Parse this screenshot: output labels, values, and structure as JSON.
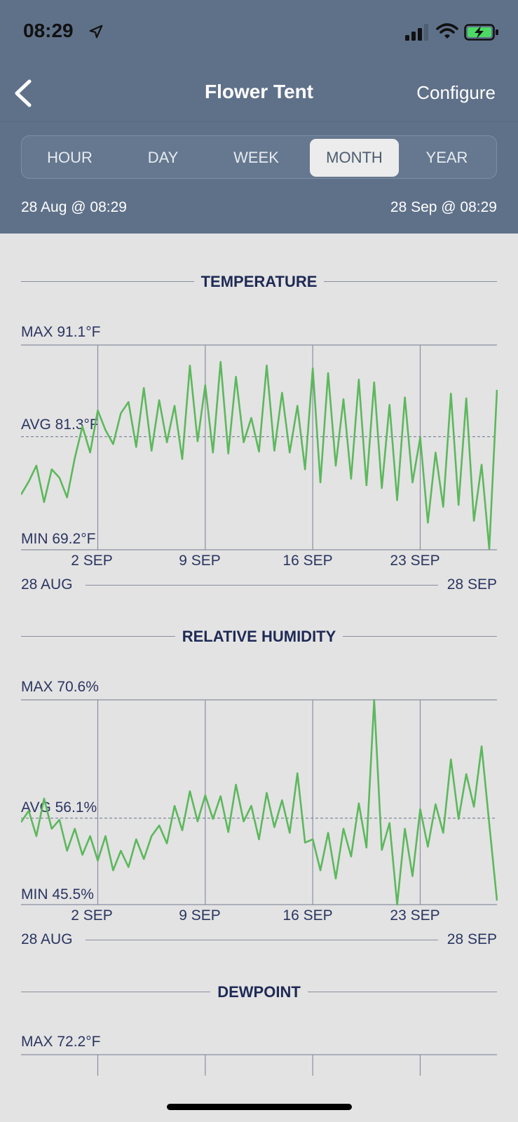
{
  "status_bar": {
    "time": "08:29",
    "icons": [
      "location-arrow-icon",
      "cellular-signal-icon",
      "wifi-icon",
      "battery-charging-icon"
    ]
  },
  "nav": {
    "back_icon": "chevron-left-icon",
    "title": "Flower Tent",
    "configure_label": "Configure"
  },
  "tabs": [
    {
      "label": "HOUR",
      "active": false
    },
    {
      "label": "DAY",
      "active": false
    },
    {
      "label": "WEEK",
      "active": false
    },
    {
      "label": "MONTH",
      "active": true
    },
    {
      "label": "YEAR",
      "active": false
    }
  ],
  "range": {
    "start": "28 Aug @ 08:29",
    "end": "28 Sep @ 08:29"
  },
  "colors": {
    "header": "#5f7189",
    "line": "#5cb85c",
    "title": "#1f2a55",
    "background": "#e3e3e3"
  },
  "chart_data": [
    {
      "type": "line",
      "title": "TEMPERATURE",
      "max_label": "MAX 91.1°F",
      "avg_label": "AVG 81.3°F",
      "min_label": "MIN 69.2°F",
      "ylim": [
        69.2,
        91.1
      ],
      "avg": 81.3,
      "xlim": [
        0,
        31
      ],
      "ticks": [
        {
          "x": 5,
          "label": "2 SEP"
        },
        {
          "x": 12,
          "label": "9 SEP"
        },
        {
          "x": 19,
          "label": "16 SEP"
        },
        {
          "x": 26,
          "label": "23 SEP"
        }
      ],
      "range_start_label": "28 AUG",
      "range_end_label": "28 SEP",
      "series": [
        {
          "values": [
            [
              0,
              75.1
            ],
            [
              0.5,
              76.5
            ],
            [
              1,
              78.2
            ],
            [
              1.5,
              74.3
            ],
            [
              2,
              77.8
            ],
            [
              2.5,
              76.9
            ],
            [
              3,
              74.8
            ],
            [
              3.5,
              79.0
            ],
            [
              4,
              82.4
            ],
            [
              4.5,
              79.6
            ],
            [
              5,
              84.1
            ],
            [
              5.5,
              82.0
            ],
            [
              6,
              80.5
            ],
            [
              6.5,
              83.8
            ],
            [
              7,
              85.0
            ],
            [
              7.5,
              80.2
            ],
            [
              8,
              86.5
            ],
            [
              8.5,
              79.8
            ],
            [
              9,
              85.2
            ],
            [
              9.5,
              80.7
            ],
            [
              10,
              84.6
            ],
            [
              10.5,
              78.9
            ],
            [
              11,
              88.9
            ],
            [
              11.5,
              80.8
            ],
            [
              12,
              86.8
            ],
            [
              12.5,
              79.6
            ],
            [
              13,
              89.3
            ],
            [
              13.5,
              79.5
            ],
            [
              14,
              87.7
            ],
            [
              14.5,
              80.7
            ],
            [
              15,
              83.3
            ],
            [
              15.5,
              79.7
            ],
            [
              16,
              88.9
            ],
            [
              16.5,
              79.8
            ],
            [
              17,
              86.0
            ],
            [
              17.5,
              79.6
            ],
            [
              18,
              84.6
            ],
            [
              18.5,
              77.8
            ],
            [
              19,
              88.6
            ],
            [
              19.5,
              76.4
            ],
            [
              20,
              88.1
            ],
            [
              20.5,
              78.2
            ],
            [
              21,
              85.3
            ],
            [
              21.5,
              76.8
            ],
            [
              22,
              87.4
            ],
            [
              22.5,
              76.1
            ],
            [
              23,
              87.1
            ],
            [
              23.5,
              75.8
            ],
            [
              24,
              84.7
            ],
            [
              24.5,
              74.5
            ],
            [
              25,
              85.5
            ],
            [
              25.5,
              76.4
            ],
            [
              26,
              81.2
            ],
            [
              26.5,
              72.1
            ],
            [
              27,
              79.6
            ],
            [
              27.5,
              73.8
            ],
            [
              28,
              85.9
            ],
            [
              28.5,
              74.0
            ],
            [
              29,
              85.4
            ],
            [
              29.5,
              72.3
            ],
            [
              30,
              78.3
            ],
            [
              30.5,
              69.3
            ],
            [
              31,
              86.3
            ]
          ]
        }
      ]
    },
    {
      "type": "line",
      "title": "RELATIVE HUMIDITY",
      "max_label": "MAX 70.6%",
      "avg_label": "AVG 56.1%",
      "min_label": "MIN 45.5%",
      "ylim": [
        45.5,
        70.6
      ],
      "avg": 56.1,
      "xlim": [
        0,
        31
      ],
      "ticks": [
        {
          "x": 5,
          "label": "2 SEP"
        },
        {
          "x": 12,
          "label": "9 SEP"
        },
        {
          "x": 19,
          "label": "16 SEP"
        },
        {
          "x": 26,
          "label": "23 SEP"
        }
      ],
      "range_start_label": "28 AUG",
      "range_end_label": "28 SEP",
      "series": [
        {
          "values": [
            [
              0,
              55.6
            ],
            [
              0.5,
              57.0
            ],
            [
              1,
              53.9
            ],
            [
              1.5,
              58.5
            ],
            [
              2,
              54.8
            ],
            [
              2.5,
              55.9
            ],
            [
              3,
              52.1
            ],
            [
              3.5,
              54.8
            ],
            [
              4,
              51.6
            ],
            [
              4.5,
              53.9
            ],
            [
              5,
              50.9
            ],
            [
              5.5,
              53.9
            ],
            [
              6,
              49.7
            ],
            [
              6.5,
              52.1
            ],
            [
              7,
              50.1
            ],
            [
              7.5,
              53.5
            ],
            [
              8,
              51.1
            ],
            [
              8.5,
              53.9
            ],
            [
              9,
              55.2
            ],
            [
              9.5,
              53.0
            ],
            [
              10,
              57.6
            ],
            [
              10.5,
              54.6
            ],
            [
              11,
              59.4
            ],
            [
              11.5,
              55.7
            ],
            [
              12,
              58.9
            ],
            [
              12.5,
              56.0
            ],
            [
              13,
              58.8
            ],
            [
              13.5,
              54.4
            ],
            [
              14,
              60.2
            ],
            [
              14.5,
              55.7
            ],
            [
              15,
              57.6
            ],
            [
              15.5,
              53.5
            ],
            [
              16,
              59.2
            ],
            [
              16.5,
              55.0
            ],
            [
              17,
              58.3
            ],
            [
              17.5,
              54.3
            ],
            [
              18,
              61.6
            ],
            [
              18.5,
              53.1
            ],
            [
              19,
              53.5
            ],
            [
              19.5,
              49.7
            ],
            [
              20,
              54.3
            ],
            [
              20.5,
              48.7
            ],
            [
              21,
              54.8
            ],
            [
              21.5,
              51.4
            ],
            [
              22,
              57.9
            ],
            [
              22.5,
              52.5
            ],
            [
              23,
              70.6
            ],
            [
              23.5,
              52.2
            ],
            [
              24,
              55.5
            ],
            [
              24.5,
              45.5
            ],
            [
              25,
              54.8
            ],
            [
              25.5,
              49.0
            ],
            [
              26,
              57.2
            ],
            [
              26.5,
              52.6
            ],
            [
              27,
              57.8
            ],
            [
              27.5,
              54.3
            ],
            [
              28,
              63.3
            ],
            [
              28.5,
              56.0
            ],
            [
              29,
              61.5
            ],
            [
              29.5,
              57.5
            ],
            [
              30,
              64.9
            ],
            [
              30.5,
              55.4
            ],
            [
              31,
              46.0
            ]
          ]
        }
      ]
    },
    {
      "type": "line",
      "title": "DEWPOINT",
      "max_label": "MAX 72.2°F",
      "ylim": [
        null,
        72.2
      ],
      "xlim": [
        0,
        31
      ],
      "series": []
    }
  ]
}
